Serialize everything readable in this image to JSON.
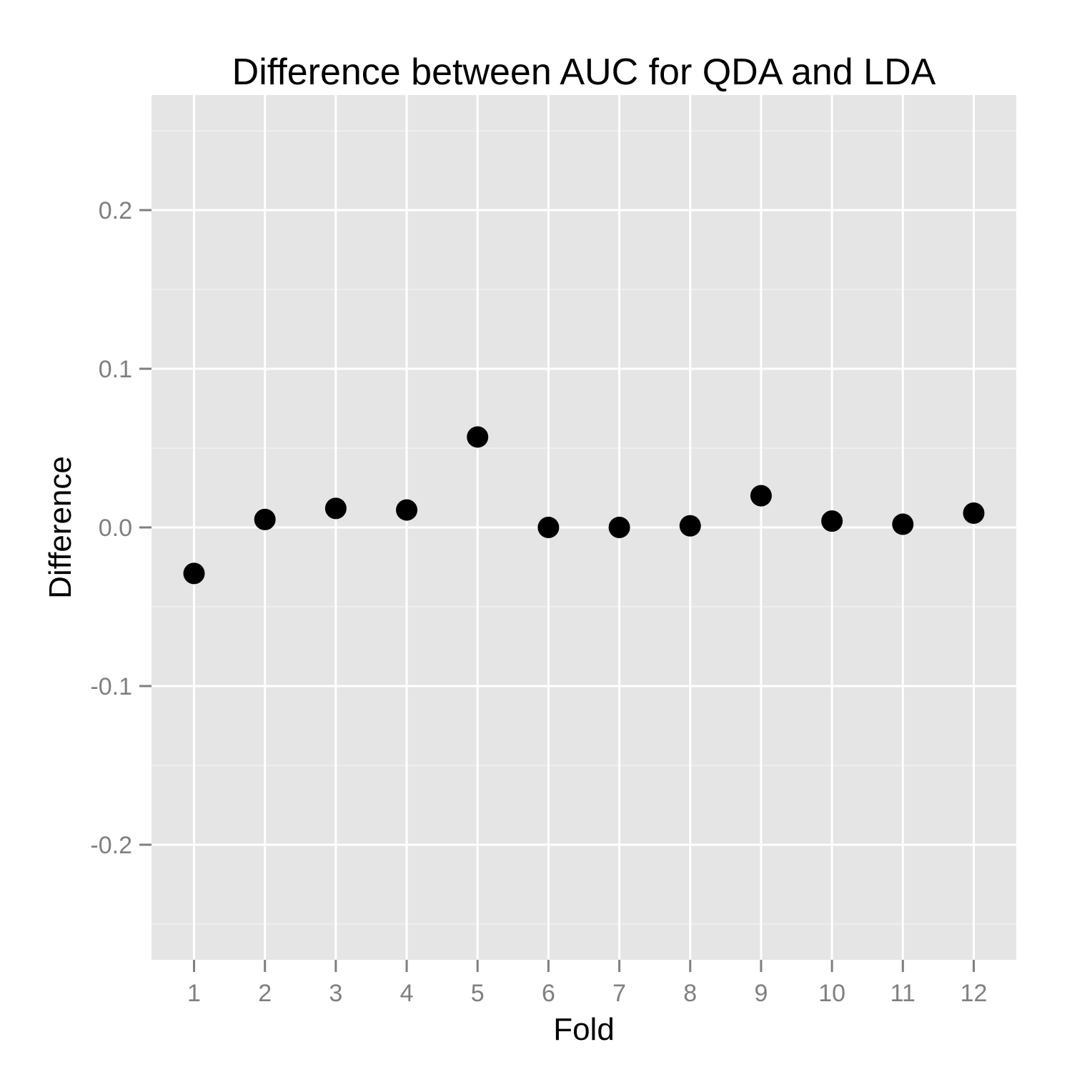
{
  "chart_data": {
    "type": "scatter",
    "title": "Difference between AUC for QDA and LDA",
    "xlabel": "Fold",
    "ylabel": "Difference",
    "x_ticks": [
      "1",
      "2",
      "3",
      "4",
      "5",
      "6",
      "7",
      "8",
      "9",
      "10",
      "11",
      "12"
    ],
    "y_ticks": [
      "-0.2",
      "-0.1",
      "0.0",
      "0.1",
      "0.2"
    ],
    "xlim": [
      0.4,
      12.6
    ],
    "ylim": [
      -0.2725,
      0.2725
    ],
    "grid": true,
    "legend": "none",
    "colors": {
      "panel_background": "#e5e5e5",
      "grid_major": "#ffffff",
      "grid_minor": "#f2f2f2",
      "point": "#000000",
      "tick_label": "#7f7f7f",
      "tick_mark": "#7f7f7f"
    },
    "series": [
      {
        "x": [
          1,
          2,
          3,
          4,
          5,
          6,
          7,
          8,
          9,
          10,
          11,
          12
        ],
        "y": [
          -0.029,
          0.005,
          0.012,
          0.011,
          0.057,
          0.0,
          0.0,
          0.001,
          0.02,
          0.004,
          0.002,
          0.009
        ]
      }
    ]
  }
}
